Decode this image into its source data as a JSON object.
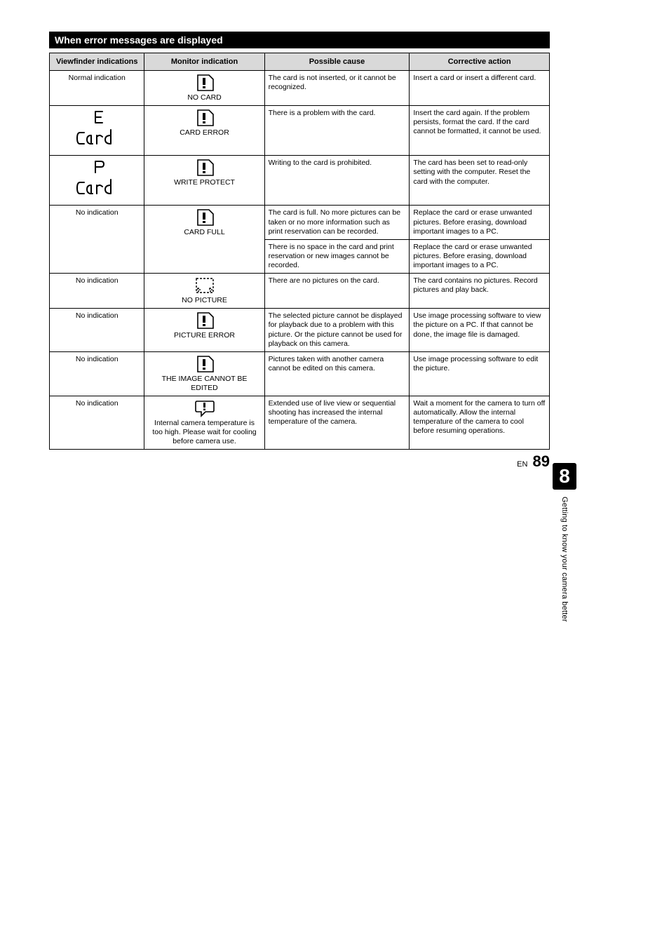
{
  "section_heading": "When error messages are displayed",
  "columns": {
    "viewfinder": "Viewfinder indications",
    "monitor": "Monitor indication",
    "cause": "Possible cause",
    "action": "Corrective action"
  },
  "rows": [
    {
      "vf_type": "text",
      "vf_text": "Normal indication",
      "mon_icon": "warn-card",
      "mon_label": "NO CARD",
      "cause": "The card is not inserted, or it cannot be recognized.",
      "action": "Insert a card or insert a different card."
    },
    {
      "vf_type": "seg-e",
      "mon_icon": "warn-card",
      "mon_label": "CARD ERROR",
      "cause": "There is a problem with the card.",
      "action": "Insert the card again. If the problem persists, format the card. If the card cannot be formatted, it cannot be used."
    },
    {
      "vf_type": "seg-p",
      "mon_icon": "warn-card",
      "mon_label": "WRITE PROTECT",
      "cause": "Writing to the card is prohibited.",
      "action": "The card has been set to read-only setting with the computer. Reset the card with the computer."
    },
    {
      "vf_type": "text",
      "vf_text": "No indication",
      "vf_rowspan": 2,
      "mon_icon": "warn-card",
      "mon_label": "CARD FULL",
      "mon_rowspan": 2,
      "cause": "The card is full. No more pictures can be taken or no more information such as print reservation can be recorded.",
      "action": "Replace the card or erase unwanted pictures. Before erasing, download important images to a PC."
    },
    {
      "continuation": true,
      "cause": "There is no space in the card and print reservation or new images cannot be recorded.",
      "action": "Replace the card or erase unwanted pictures. Before erasing, download important images to a PC."
    },
    {
      "vf_type": "text",
      "vf_text": "No indication",
      "mon_icon": "dashed-card",
      "mon_label": "NO PICTURE",
      "cause": "There are no pictures on the card.",
      "action": "The card contains no pictures. Record pictures and play back."
    },
    {
      "vf_type": "text",
      "vf_text": "No indication",
      "mon_icon": "warn-card",
      "mon_label": "PICTURE ERROR",
      "cause": "The selected picture cannot be displayed for playback due to a problem with this picture. Or the picture cannot be used for playback on this camera.",
      "action": "Use image processing software to view the picture on a PC. If that cannot be done, the image file is damaged."
    },
    {
      "vf_type": "text",
      "vf_text": "No indication",
      "mon_icon": "warn-card",
      "mon_label": "THE IMAGE CANNOT BE EDITED",
      "cause": "Pictures taken with another camera cannot be edited on this camera.",
      "action": "Use image processing software to edit the picture."
    },
    {
      "vf_type": "text",
      "vf_text": "No indication",
      "mon_icon": "warn-speech",
      "mon_label": "Internal camera temperature is too high. Please wait for cooling before camera use.",
      "cause": "Extended use of live view or sequential shooting has increased the internal temperature of the camera.",
      "action": "Wait a moment for the camera to turn off automatically. Allow the internal temperature of the camera to cool before resuming operations."
    }
  ],
  "side_tab": {
    "number": "8",
    "label": "Getting to know your camera better"
  },
  "footer": {
    "lang": "EN",
    "page": "89"
  },
  "colors": {
    "heading_bg": "#000000",
    "heading_fg": "#ffffff",
    "th_bg": "#d9d9d9",
    "border": "#000000"
  },
  "fonts": {
    "heading_size": 14,
    "th_size": 11,
    "td_size": 10.5,
    "tab_number_size": 28,
    "page_number_size": 22
  }
}
